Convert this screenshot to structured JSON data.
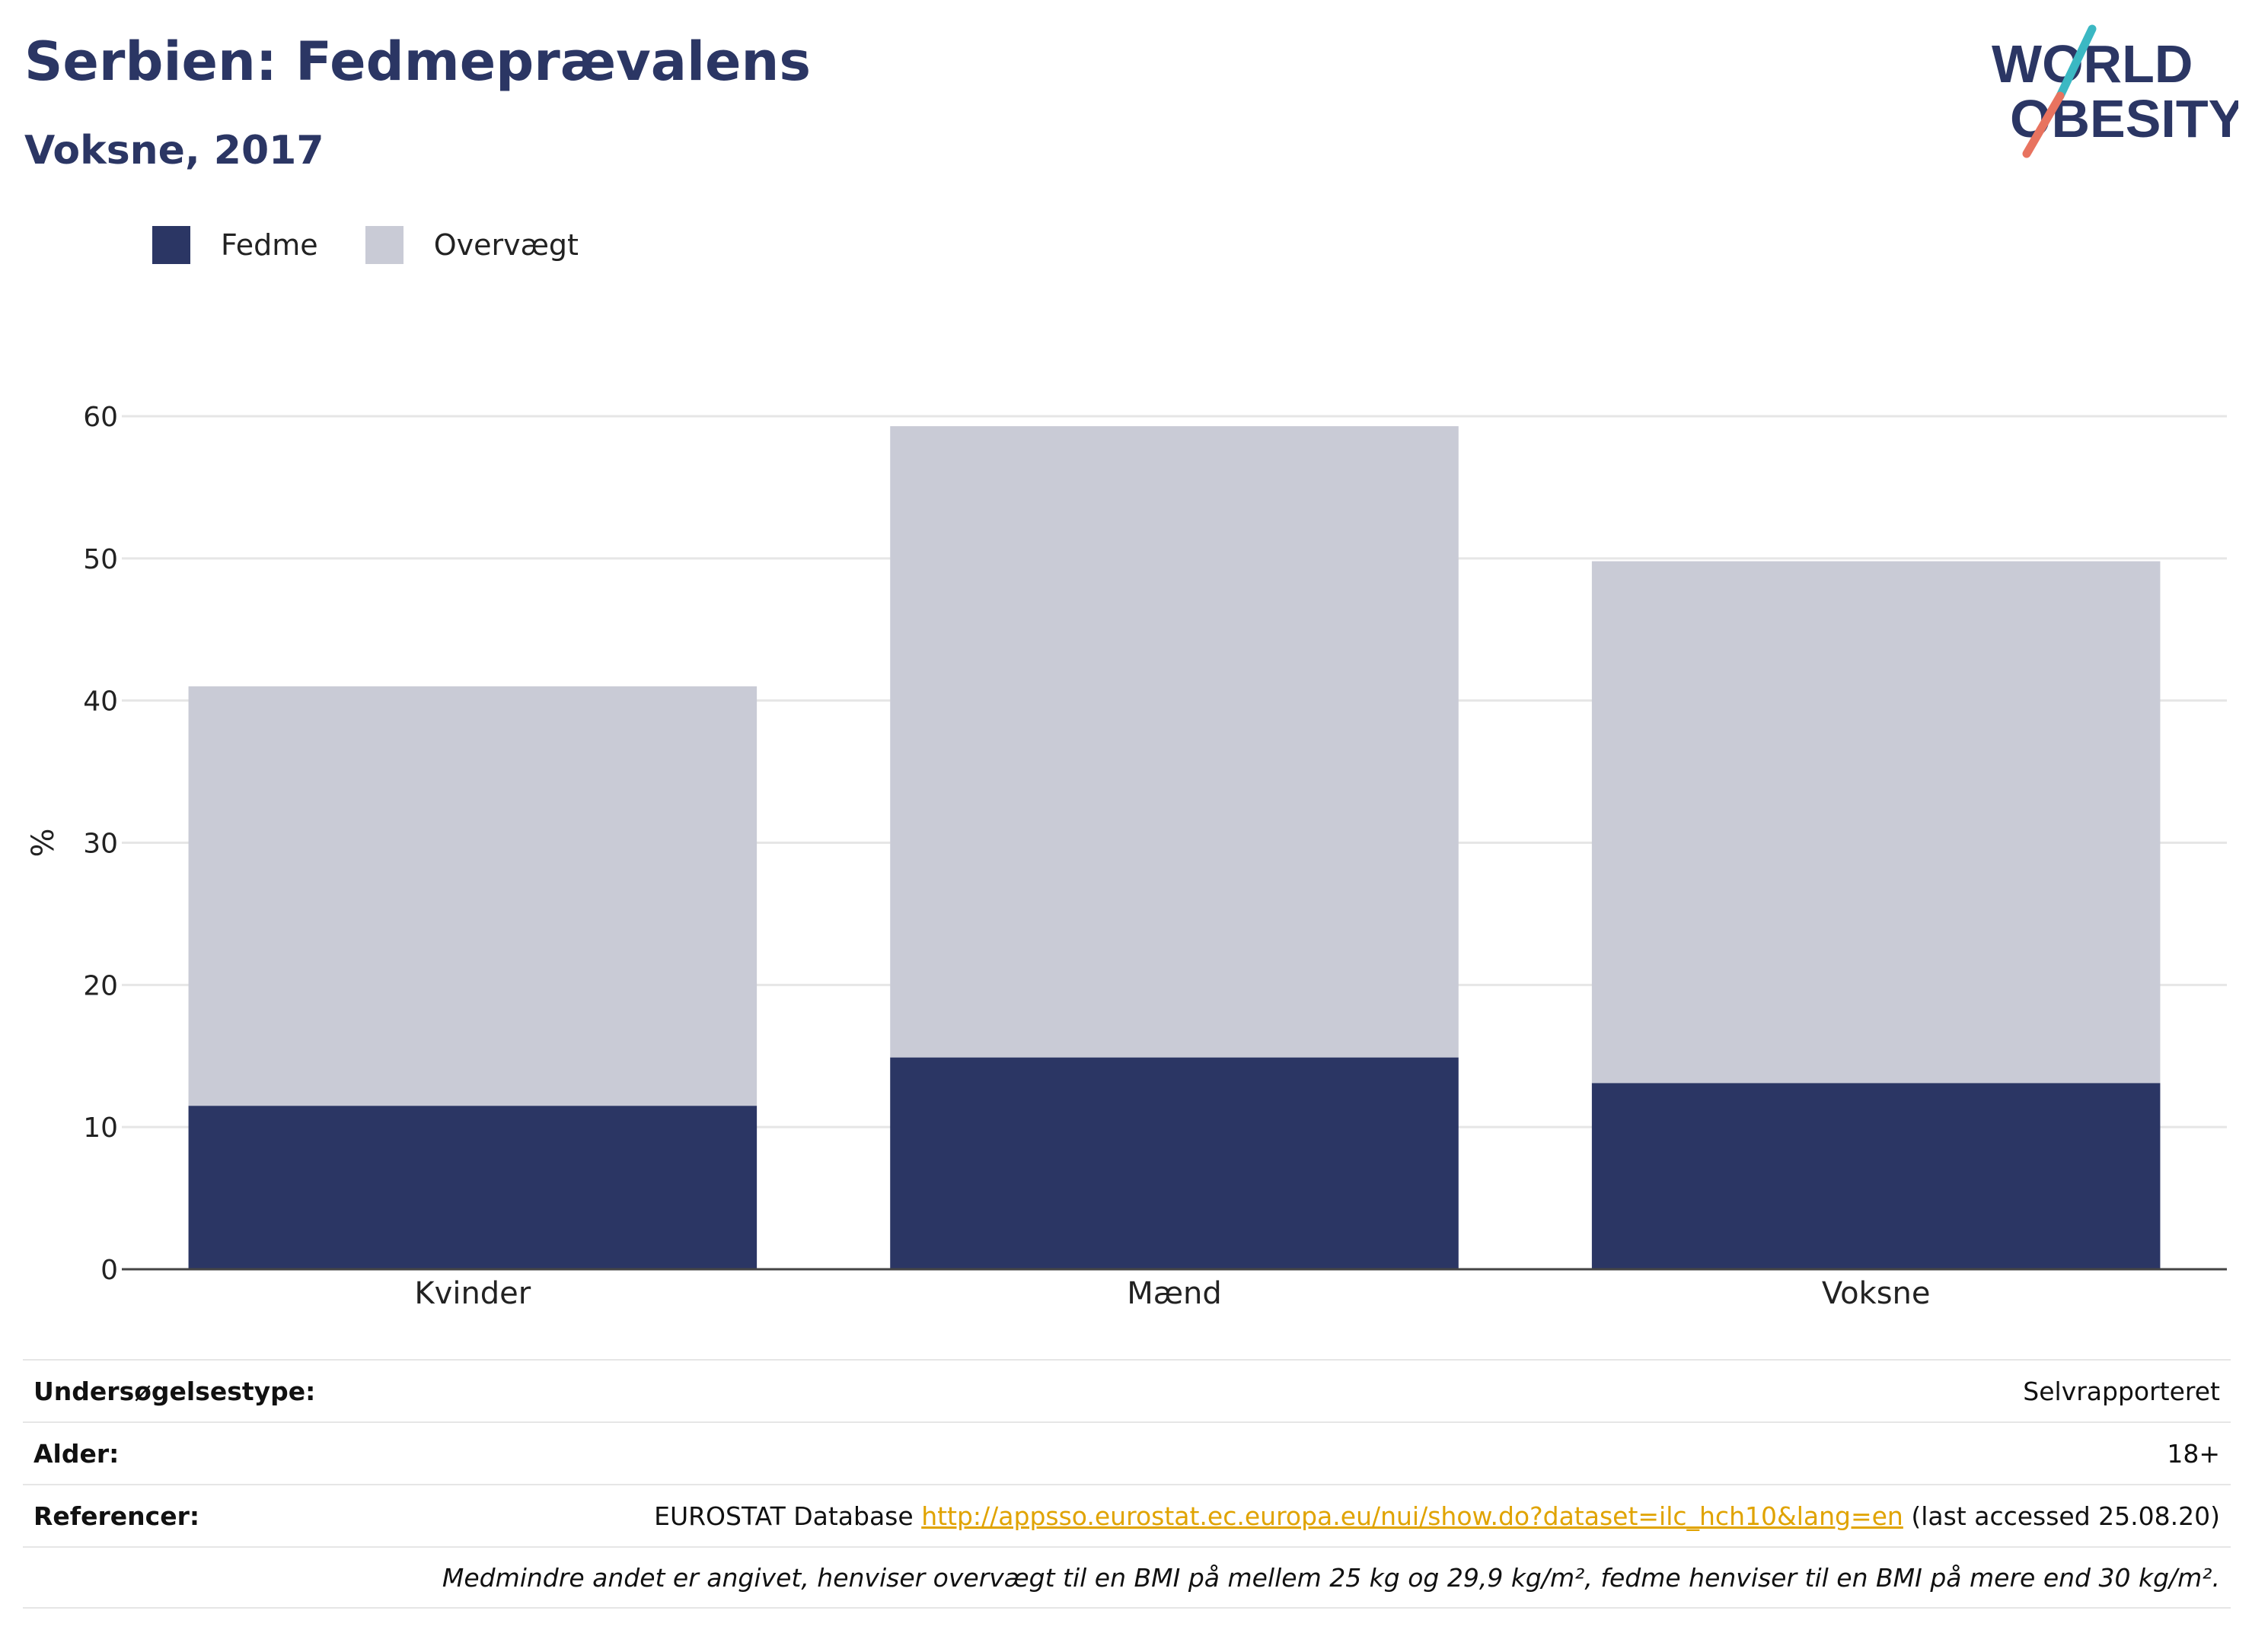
{
  "title": "Serbien: Fedmeprævalens",
  "subtitle": "Voksne, 2017",
  "logo": {
    "line1": "WORLD",
    "line2": "OBESITY"
  },
  "colors": {
    "fedme": "#2b3664",
    "overvaegt": "#c9cbd6",
    "title": "#2b3664",
    "link": "#e0a300",
    "logo_teal": "#3bb8c3",
    "logo_coral": "#e8735f"
  },
  "legend": [
    {
      "label": "Fedme",
      "color": "#2b3664"
    },
    {
      "label": "Overvægt",
      "color": "#c9cbd6"
    }
  ],
  "chart_data": {
    "type": "bar",
    "stacked": true,
    "categories": [
      "Kvinder",
      "Mænd",
      "Voksne"
    ],
    "series": [
      {
        "name": "Fedme",
        "values": [
          11.5,
          14.9,
          13.1
        ]
      },
      {
        "name": "Overvægt",
        "values": [
          29.5,
          44.4,
          36.7
        ]
      }
    ],
    "ylabel": "%",
    "ylim": [
      0,
      60
    ],
    "yticks": [
      0,
      10,
      20,
      30,
      40,
      50,
      60
    ],
    "grid": true,
    "legend_position": "top-left"
  },
  "info": {
    "survey_label": "Undersøgelsestype:",
    "survey_value": "Selvrapporteret",
    "age_label": "Alder:",
    "age_value": "18+",
    "ref_label": "Referencer:",
    "ref_prefix": "EUROSTAT Database",
    "ref_link": "http://appsso.eurostat.ec.europa.eu/nui/show.do?dataset=ilc_hch10&lang=en",
    "ref_suffix": "(last accessed 25.08.20)",
    "note": "Medmindre andet er angivet, henviser overvægt til en BMI på mellem 25 kg og 29,9 kg/m², fedme henviser til en BMI på mere end 30 kg/m²."
  }
}
